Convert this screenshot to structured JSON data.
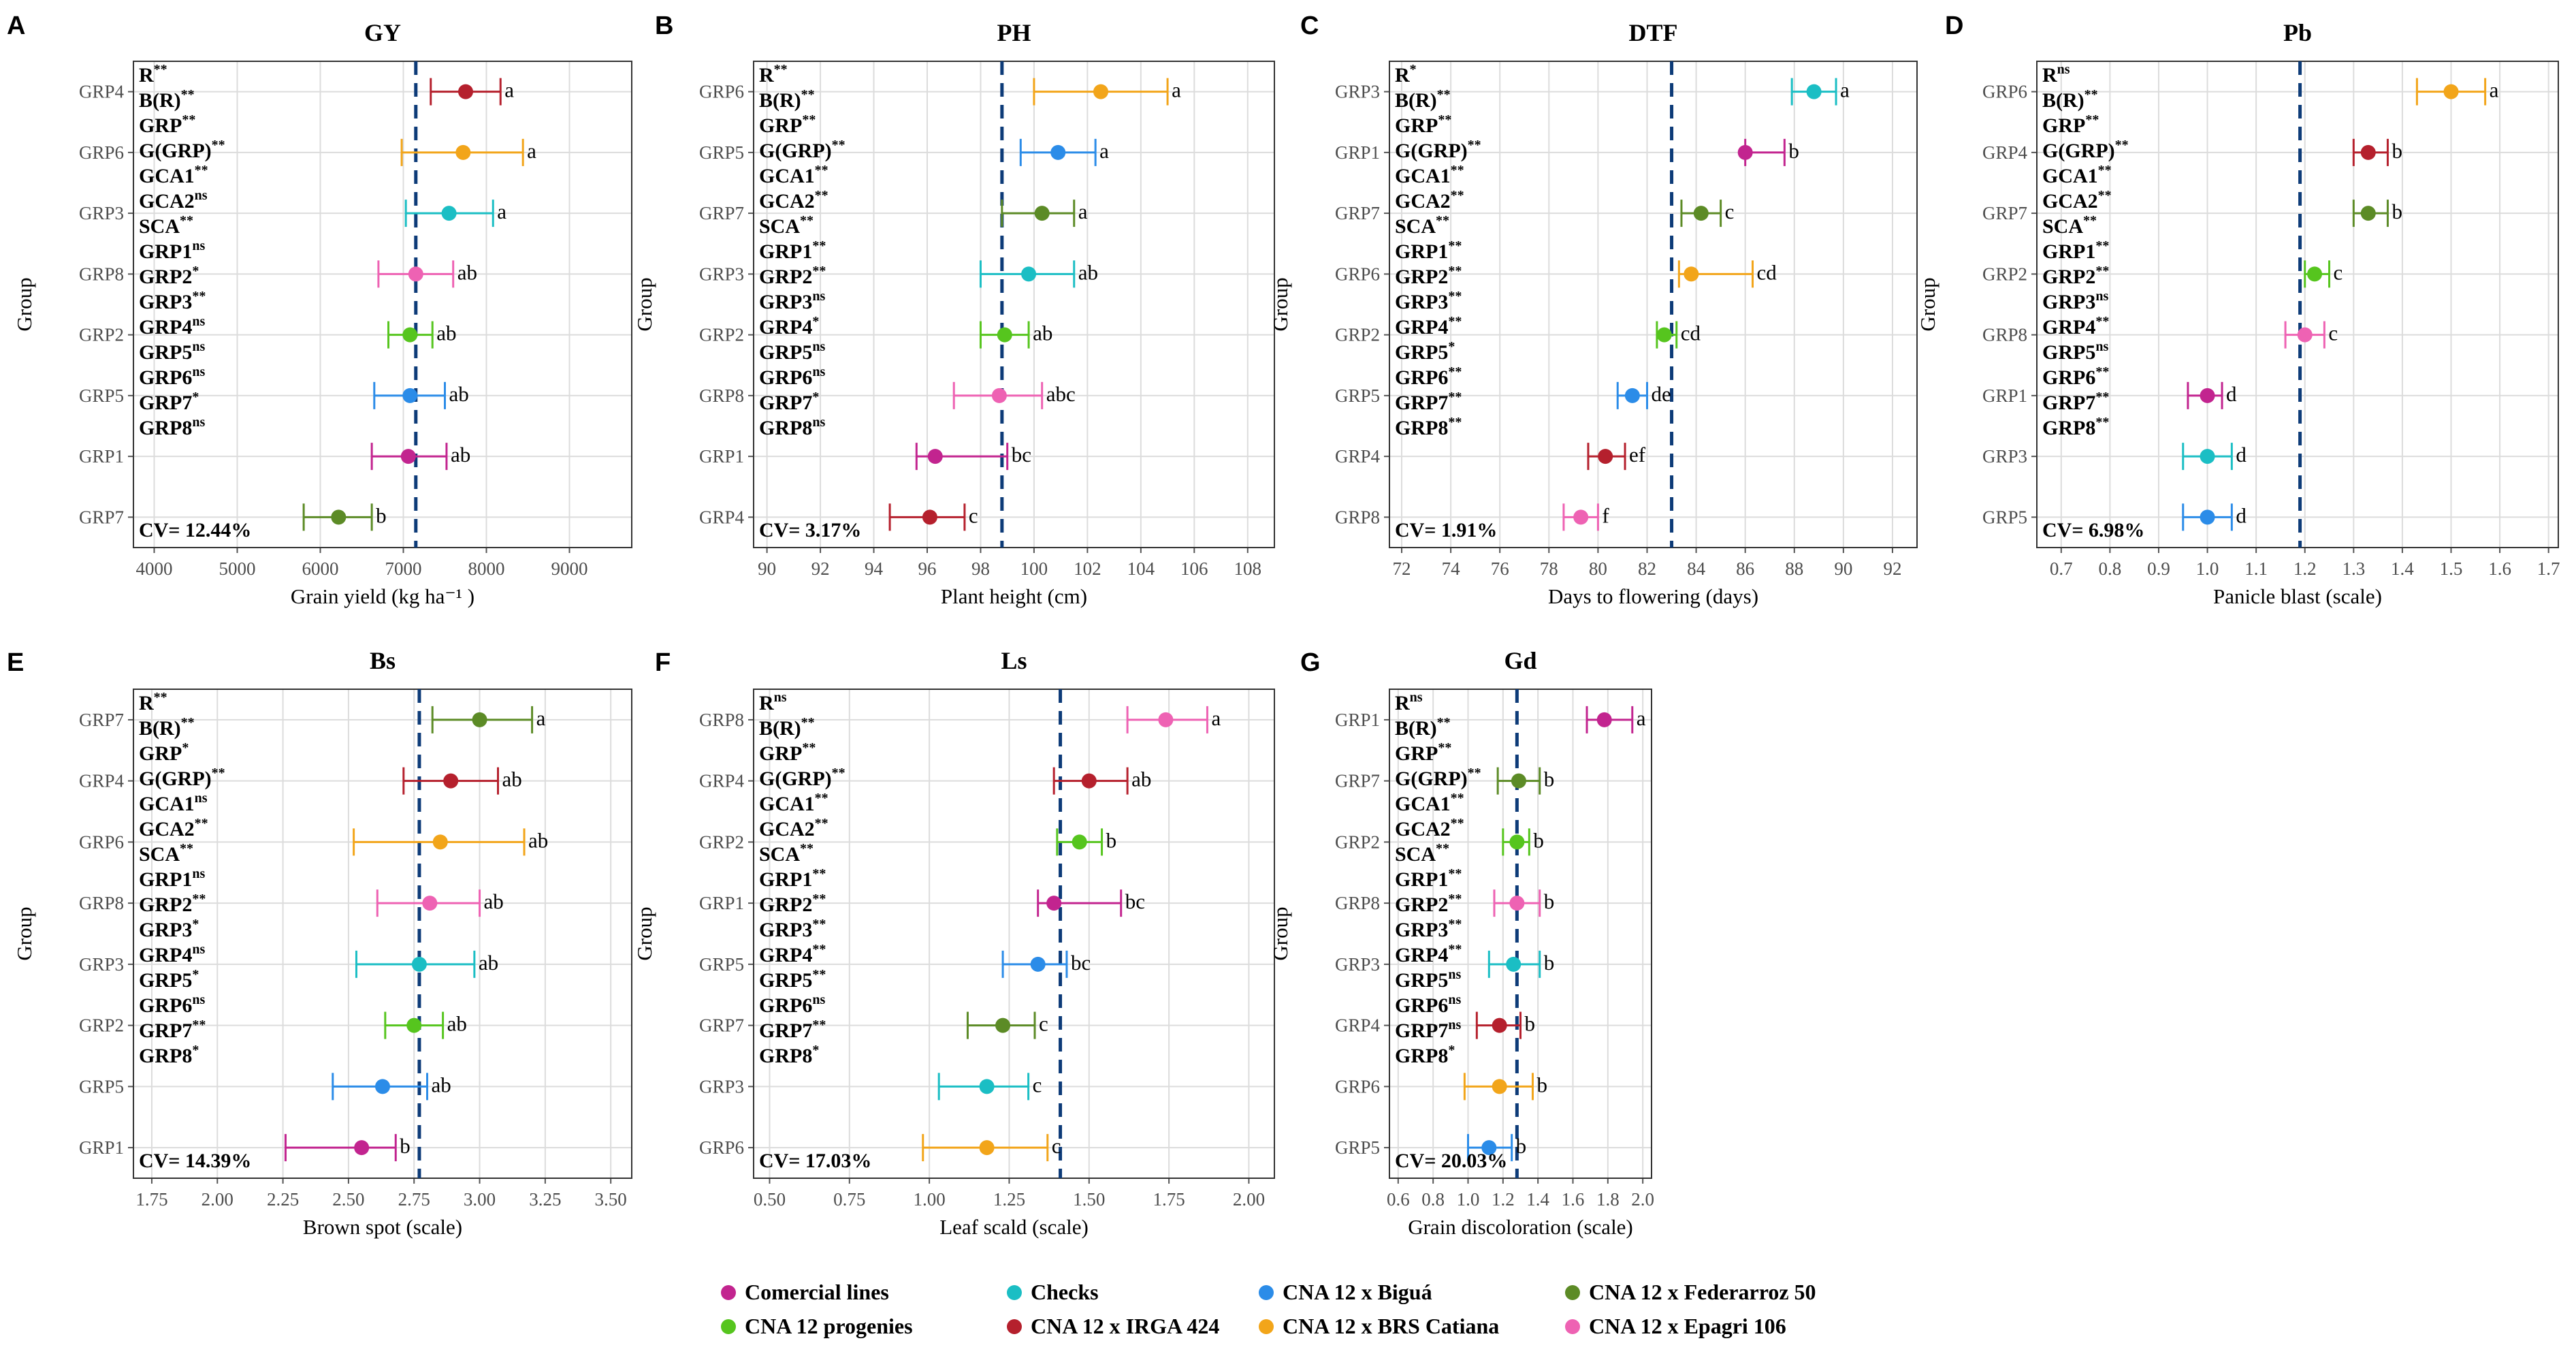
{
  "colors": {
    "Comercial lines": "#c2248f",
    "Checks": "#1bbec4",
    "CNA 12 x Biguá": "#2b8ce8",
    "CNA 12 x Federarroz 50": "#5c8b26",
    "CNA 12 progenies": "#56c51e",
    "CNA 12 x IRGA 424": "#b5202d",
    "CNA 12 x BRS Catiana": "#f2a51a",
    "CNA 12 x Epagri 106": "#ee62b3"
  },
  "legend": {
    "row1": [
      "Comercial lines",
      "Checks",
      "CNA 12 x Biguá",
      "CNA 12 x Federarroz 50"
    ],
    "row2": [
      "CNA 12 progenies",
      "CNA 12 x IRGA 424",
      "CNA 12 x BRS Catiana",
      "CNA 12 x Epagri 106"
    ]
  },
  "ylabel": "Group",
  "chart_data": [
    {
      "panel": "A",
      "type": "scatter",
      "title": "GY",
      "xlabel": "Grain yield (kg  ha⁻¹ )",
      "xlim": [
        3750,
        9750
      ],
      "ticks": [
        4000,
        5000,
        6000,
        7000,
        8000,
        9000
      ],
      "ticklabels": [
        "4000",
        "5000",
        "6000",
        "7000",
        "8000",
        "9000"
      ],
      "ref": 7150,
      "groups": [
        "GRP4",
        "GRP6",
        "GRP3",
        "GRP8",
        "GRP2",
        "GRP5",
        "GRP1",
        "GRP7"
      ],
      "means": [
        7750,
        7720,
        7550,
        7150,
        7080,
        7080,
        7060,
        6220
      ],
      "lower": [
        7330,
        6980,
        7030,
        6700,
        6820,
        6650,
        6620,
        5800
      ],
      "upper": [
        8170,
        8440,
        8080,
        7600,
        7350,
        7500,
        7520,
        6620
      ],
      "letters": [
        "a",
        "a",
        "a",
        "ab",
        "ab",
        "ab",
        "ab",
        "b"
      ],
      "series": [
        "CNA 12 x IRGA 424",
        "CNA 12 x BRS Catiana",
        "Checks",
        "CNA 12 x Epagri 106",
        "CNA 12 progenies",
        "CNA 12 x Biguá",
        "Comercial lines",
        "CNA 12 x Federarroz 50"
      ],
      "annotations": [
        [
          "R",
          "**"
        ],
        [
          "B(R)",
          "**"
        ],
        [
          "GRP",
          "**"
        ],
        [
          "G(GRP)",
          "**"
        ],
        [
          "GCA1",
          "**"
        ],
        [
          "GCA2",
          "ns"
        ],
        [
          "SCA",
          "**"
        ],
        [
          "GRP1",
          "ns"
        ],
        [
          "GRP2",
          "*"
        ],
        [
          "GRP3",
          "**"
        ],
        [
          "GRP4",
          "ns"
        ],
        [
          "GRP5",
          "ns"
        ],
        [
          "GRP6",
          "ns"
        ],
        [
          "GRP7",
          "*"
        ],
        [
          "GRP8",
          "ns"
        ]
      ],
      "cv": "CV= 12.44%"
    },
    {
      "panel": "B",
      "type": "scatter",
      "title": "PH",
      "xlabel": "Plant height (cm)",
      "xlim": [
        89.5,
        109
      ],
      "ticks": [
        90,
        92,
        94,
        96,
        98,
        100,
        102,
        104,
        106,
        108
      ],
      "ticklabels": [
        "90",
        "92",
        "94",
        "96",
        "98",
        "100",
        "102",
        "104",
        "106",
        "108"
      ],
      "ref": 98.8,
      "groups": [
        "GRP6",
        "GRP5",
        "GRP7",
        "GRP3",
        "GRP2",
        "GRP8",
        "GRP1",
        "GRP4"
      ],
      "means": [
        102.5,
        100.9,
        100.3,
        99.8,
        98.9,
        98.7,
        96.3,
        96.1
      ],
      "lower": [
        100.0,
        99.5,
        98.8,
        98.0,
        98.0,
        97.0,
        95.6,
        94.6
      ],
      "upper": [
        105.0,
        102.3,
        101.5,
        101.5,
        99.8,
        100.3,
        99.0,
        97.4
      ],
      "letters": [
        "a",
        "a",
        "a",
        "ab",
        "ab",
        "abc",
        "bc",
        "c"
      ],
      "series": [
        "CNA 12 x BRS Catiana",
        "CNA 12 x Biguá",
        "CNA 12 x Federarroz 50",
        "Checks",
        "CNA 12 progenies",
        "CNA 12 x Epagri 106",
        "Comercial lines",
        "CNA 12 x IRGA 424"
      ],
      "annotations": [
        [
          "R",
          "**"
        ],
        [
          "B(R)",
          "**"
        ],
        [
          "GRP",
          "**"
        ],
        [
          "G(GRP)",
          "**"
        ],
        [
          "GCA1",
          "**"
        ],
        [
          "GCA2",
          "**"
        ],
        [
          "SCA",
          "**"
        ],
        [
          "GRP1",
          "**"
        ],
        [
          "GRP2",
          "**"
        ],
        [
          "GRP3",
          "ns"
        ],
        [
          "GRP4",
          "*"
        ],
        [
          "GRP5",
          "ns"
        ],
        [
          "GRP6",
          "ns"
        ],
        [
          "GRP7",
          "*"
        ],
        [
          "GRP8",
          "ns"
        ]
      ],
      "cv": "CV= 3.17%"
    },
    {
      "panel": "C",
      "type": "scatter",
      "title": "DTF",
      "xlabel": "Days to flowering (days)",
      "xlim": [
        71.5,
        93
      ],
      "ticks": [
        72,
        74,
        76,
        78,
        80,
        82,
        84,
        86,
        88,
        90,
        92
      ],
      "ticklabels": [
        "72",
        "74",
        "76",
        "78",
        "80",
        "82",
        "84",
        "86",
        "88",
        "90",
        "92"
      ],
      "ref": 83.0,
      "groups": [
        "GRP3",
        "GRP1",
        "GRP7",
        "GRP6",
        "GRP2",
        "GRP5",
        "GRP4",
        "GRP8"
      ],
      "means": [
        88.8,
        86.0,
        84.2,
        83.8,
        82.7,
        81.4,
        80.3,
        79.3
      ],
      "lower": [
        87.9,
        86.0,
        83.4,
        83.3,
        82.4,
        80.8,
        79.6,
        78.6
      ],
      "upper": [
        89.7,
        87.6,
        85.0,
        86.3,
        83.2,
        82.0,
        81.1,
        80.0
      ],
      "letters": [
        "a",
        "b",
        "c",
        "cd",
        "cd",
        "de",
        "ef",
        "f"
      ],
      "series": [
        "Checks",
        "Comercial lines",
        "CNA 12 x Federarroz 50",
        "CNA 12 x BRS Catiana",
        "CNA 12 progenies",
        "CNA 12 x Biguá",
        "CNA 12 x IRGA 424",
        "CNA 12 x Epagri 106"
      ],
      "annotations": [
        [
          "R",
          "*"
        ],
        [
          "B(R)",
          "**"
        ],
        [
          "GRP",
          "**"
        ],
        [
          "G(GRP)",
          "**"
        ],
        [
          "GCA1",
          "**"
        ],
        [
          "GCA2",
          "**"
        ],
        [
          "SCA",
          "**"
        ],
        [
          "GRP1",
          "**"
        ],
        [
          "GRP2",
          "**"
        ],
        [
          "GRP3",
          "**"
        ],
        [
          "GRP4",
          "**"
        ],
        [
          "GRP5",
          "*"
        ],
        [
          "GRP6",
          "**"
        ],
        [
          "GRP7",
          "**"
        ],
        [
          "GRP8",
          "**"
        ]
      ],
      "cv": "CV= 1.91%"
    },
    {
      "panel": "D",
      "type": "scatter",
      "title": "Pb",
      "xlabel": "Panicle blast (scale)",
      "xlim": [
        0.65,
        1.72
      ],
      "ticks": [
        0.7,
        0.8,
        0.9,
        1.0,
        1.1,
        1.2,
        1.3,
        1.4,
        1.5,
        1.6,
        1.7
      ],
      "ticklabels": [
        "0.7",
        "0.8",
        "0.9",
        "1.0",
        "1.1",
        "1.2",
        "1.3",
        "1.4",
        "1.5",
        "1.6",
        "1.7"
      ],
      "ref": 1.19,
      "groups": [
        "GRP6",
        "GRP4",
        "GRP7",
        "GRP2",
        "GRP8",
        "GRP1",
        "GRP3",
        "GRP5"
      ],
      "means": [
        1.5,
        1.33,
        1.33,
        1.22,
        1.2,
        1.0,
        1.0,
        1.0
      ],
      "lower": [
        1.43,
        1.3,
        1.3,
        1.2,
        1.16,
        0.96,
        0.95,
        0.95
      ],
      "upper": [
        1.57,
        1.37,
        1.37,
        1.25,
        1.24,
        1.03,
        1.05,
        1.05
      ],
      "letters": [
        "a",
        "b",
        "b",
        "c",
        "c",
        "d",
        "d",
        "d"
      ],
      "series": [
        "CNA 12 x BRS Catiana",
        "CNA 12 x IRGA 424",
        "CNA 12 x Federarroz 50",
        "CNA 12 progenies",
        "CNA 12 x Epagri 106",
        "Comercial lines",
        "Checks",
        "CNA 12 x Biguá"
      ],
      "annotations": [
        [
          "R",
          "ns"
        ],
        [
          "B(R)",
          "**"
        ],
        [
          "GRP",
          "**"
        ],
        [
          "G(GRP)",
          "**"
        ],
        [
          "GCA1",
          "**"
        ],
        [
          "GCA2",
          "**"
        ],
        [
          "SCA",
          "**"
        ],
        [
          "GRP1",
          "**"
        ],
        [
          "GRP2",
          "**"
        ],
        [
          "GRP3",
          "ns"
        ],
        [
          "GRP4",
          "**"
        ],
        [
          "GRP5",
          "ns"
        ],
        [
          "GRP6",
          "**"
        ],
        [
          "GRP7",
          "**"
        ],
        [
          "GRP8",
          "**"
        ]
      ],
      "cv": "CV= 6.98%"
    },
    {
      "panel": "E",
      "type": "scatter",
      "title": "Bs",
      "xlabel": "Brown spot (scale)",
      "xlim": [
        1.68,
        3.58
      ],
      "ticks": [
        1.75,
        2.0,
        2.25,
        2.5,
        2.75,
        3.0,
        3.25,
        3.5
      ],
      "ticklabels": [
        "1.75",
        "2.00",
        "2.25",
        "2.50",
        "2.75",
        "3.00",
        "3.25",
        "3.50"
      ],
      "ref": 2.77,
      "groups": [
        "GRP7",
        "GRP4",
        "GRP6",
        "GRP8",
        "GRP3",
        "GRP2",
        "GRP5",
        "GRP1"
      ],
      "means": [
        3.0,
        2.89,
        2.85,
        2.81,
        2.77,
        2.75,
        2.63,
        2.55
      ],
      "lower": [
        2.82,
        2.71,
        2.52,
        2.61,
        2.53,
        2.64,
        2.44,
        2.26
      ],
      "upper": [
        3.2,
        3.07,
        3.17,
        3.0,
        2.98,
        2.86,
        2.8,
        2.68
      ],
      "letters": [
        "a",
        "ab",
        "ab",
        "ab",
        "ab",
        "ab",
        "ab",
        "b"
      ],
      "series": [
        "CNA 12 x Federarroz 50",
        "CNA 12 x IRGA 424",
        "CNA 12 x BRS Catiana",
        "CNA 12 x Epagri 106",
        "Checks",
        "CNA 12 progenies",
        "CNA 12 x Biguá",
        "Comercial lines"
      ],
      "annotations": [
        [
          "R",
          "**"
        ],
        [
          "B(R)",
          "**"
        ],
        [
          "GRP",
          "*"
        ],
        [
          "G(GRP)",
          "**"
        ],
        [
          "GCA1",
          "ns"
        ],
        [
          "GCA2",
          "**"
        ],
        [
          "SCA",
          "**"
        ],
        [
          "GRP1",
          "ns"
        ],
        [
          "GRP2",
          "**"
        ],
        [
          "GRP3",
          "*"
        ],
        [
          "GRP4",
          "ns"
        ],
        [
          "GRP5",
          "*"
        ],
        [
          "GRP6",
          "ns"
        ],
        [
          "GRP7",
          "**"
        ],
        [
          "GRP8",
          "*"
        ]
      ],
      "cv": "CV= 14.39%"
    },
    {
      "panel": "F",
      "type": "scatter",
      "title": "Ls",
      "xlabel": "Leaf scald (scale)",
      "xlim": [
        0.45,
        2.08
      ],
      "ticks": [
        0.5,
        0.75,
        1.0,
        1.25,
        1.5,
        1.75,
        2.0
      ],
      "ticklabels": [
        "0.50",
        "0.75",
        "1.00",
        "1.25",
        "1.50",
        "1.75",
        "2.00"
      ],
      "ref": 1.41,
      "groups": [
        "GRP8",
        "GRP4",
        "GRP2",
        "GRP1",
        "GRP5",
        "GRP7",
        "GRP3",
        "GRP6"
      ],
      "means": [
        1.74,
        1.5,
        1.47,
        1.39,
        1.34,
        1.23,
        1.18,
        1.18
      ],
      "lower": [
        1.62,
        1.39,
        1.4,
        1.34,
        1.23,
        1.12,
        1.03,
        0.98
      ],
      "upper": [
        1.87,
        1.62,
        1.54,
        1.6,
        1.43,
        1.33,
        1.31,
        1.37
      ],
      "letters": [
        "a",
        "ab",
        "b",
        "bc",
        "bc",
        "c",
        "c",
        "c"
      ],
      "series": [
        "CNA 12 x Epagri 106",
        "CNA 12 x IRGA 424",
        "CNA 12 progenies",
        "Comercial lines",
        "CNA 12 x Biguá",
        "CNA 12 x Federarroz 50",
        "Checks",
        "CNA 12 x BRS Catiana"
      ],
      "annotations": [
        [
          "R",
          "ns"
        ],
        [
          "B(R)",
          "**"
        ],
        [
          "GRP",
          "**"
        ],
        [
          "G(GRP)",
          "**"
        ],
        [
          "GCA1",
          "**"
        ],
        [
          "GCA2",
          "**"
        ],
        [
          "SCA",
          "**"
        ],
        [
          "GRP1",
          "**"
        ],
        [
          "GRP2",
          "**"
        ],
        [
          "GRP3",
          "**"
        ],
        [
          "GRP4",
          "**"
        ],
        [
          "GRP5",
          "**"
        ],
        [
          "GRP6",
          "ns"
        ],
        [
          "GRP7",
          "**"
        ],
        [
          "GRP8",
          "*"
        ]
      ],
      "cv": "CV= 17.03%"
    },
    {
      "panel": "G",
      "type": "scatter",
      "title": "Gd",
      "xlabel": "Grain discoloration (scale)",
      "xlim": [
        0.55,
        2.05
      ],
      "ticks": [
        0.6,
        0.8,
        1.0,
        1.2,
        1.4,
        1.6,
        1.8,
        2.0
      ],
      "ticklabels": [
        "0.6",
        "0.8",
        "1.0",
        "1.2",
        "1.4",
        "1.6",
        "1.8",
        "2.0"
      ],
      "ref": 1.28,
      "groups": [
        "GRP1",
        "GRP7",
        "GRP2",
        "GRP8",
        "GRP3",
        "GRP4",
        "GRP6",
        "GRP5"
      ],
      "means": [
        1.78,
        1.29,
        1.28,
        1.28,
        1.26,
        1.18,
        1.18,
        1.12
      ],
      "lower": [
        1.68,
        1.17,
        1.2,
        1.15,
        1.12,
        1.05,
        0.98,
        1.0
      ],
      "upper": [
        1.94,
        1.41,
        1.35,
        1.41,
        1.41,
        1.3,
        1.37,
        1.25
      ],
      "letters": [
        "a",
        "b",
        "b",
        "b",
        "b",
        "b",
        "b",
        "b"
      ],
      "series": [
        "Comercial lines",
        "CNA 12 x Federarroz 50",
        "CNA 12 progenies",
        "CNA 12 x Epagri 106",
        "Checks",
        "CNA 12 x IRGA 424",
        "CNA 12 x BRS Catiana",
        "CNA 12 x Biguá"
      ],
      "annotations": [
        [
          "R",
          "ns"
        ],
        [
          "B(R)",
          "**"
        ],
        [
          "GRP",
          "**"
        ],
        [
          "G(GRP)",
          "**"
        ],
        [
          "GCA1",
          "**"
        ],
        [
          "GCA2",
          "**"
        ],
        [
          "SCA",
          "**"
        ],
        [
          "GRP1",
          "**"
        ],
        [
          "GRP2",
          "**"
        ],
        [
          "GRP3",
          "**"
        ],
        [
          "GRP4",
          "**"
        ],
        [
          "GRP5",
          "ns"
        ],
        [
          "GRP6",
          "ns"
        ],
        [
          "GRP7",
          "ns"
        ],
        [
          "GRP8",
          "*"
        ]
      ],
      "cv": "CV= 20.03%"
    }
  ]
}
